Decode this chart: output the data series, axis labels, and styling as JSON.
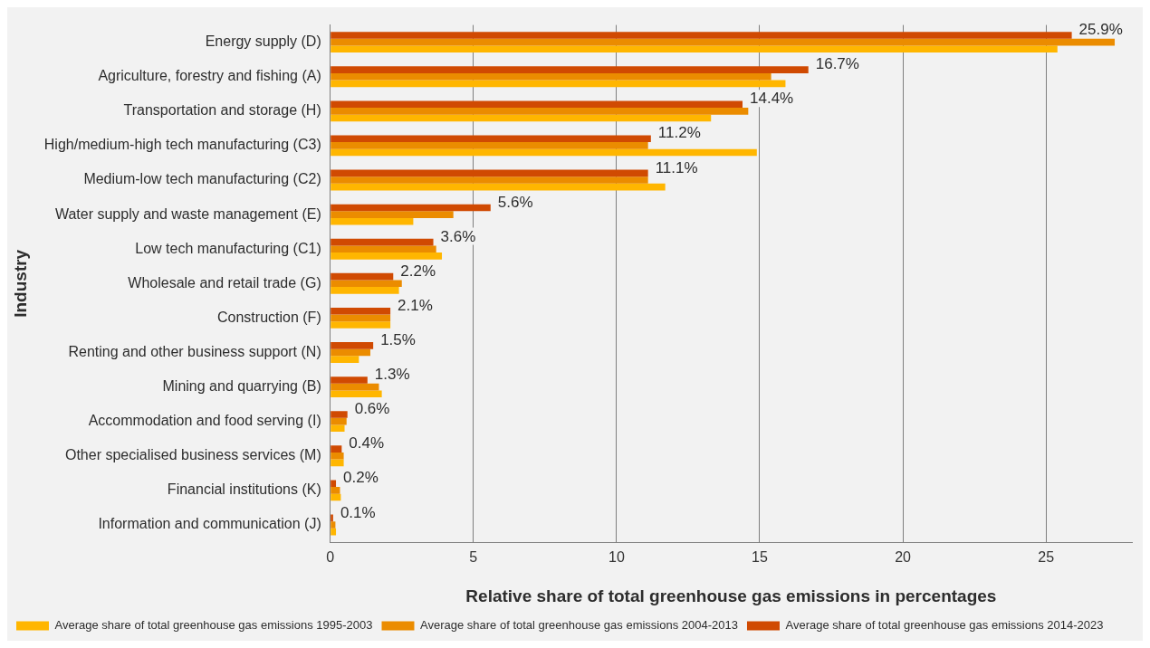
{
  "chart_data": {
    "type": "bar",
    "orientation": "horizontal",
    "xlabel": "Relative share of total greenhouse gas emissions in percentages",
    "ylabel": "Industry",
    "categories": [
      "Energy supply (D)",
      "Agriculture, forestry and fishing (A)",
      "Transportation and storage (H)",
      "High/medium-high tech manufacturing (C3)",
      "Medium-low tech manufacturing (C2)",
      "Water supply and waste management (E)",
      "Low tech manufacturing (C1)",
      "Wholesale and retail trade (G)",
      "Construction (F)",
      "Renting and other business support (N)",
      "Mining and quarrying (B)",
      "Accommodation and food serving (I)",
      "Other specialised business services (M)",
      "Financial institutions (K)",
      "Information and communication (J)"
    ],
    "series": [
      {
        "name": "Average share of total greenhouse gas emissions 1995-2003",
        "color": "#ffb600",
        "values": [
          25.4,
          15.9,
          13.3,
          14.9,
          11.7,
          2.9,
          3.9,
          2.4,
          2.1,
          1.0,
          1.8,
          0.5,
          0.47,
          0.37,
          0.2
        ]
      },
      {
        "name": "Average share of total greenhouse gas emissions 2004-2013",
        "color": "#eb8c00",
        "values": [
          27.4,
          15.4,
          14.6,
          11.1,
          11.1,
          4.3,
          3.7,
          2.5,
          2.1,
          1.4,
          1.7,
          0.57,
          0.47,
          0.34,
          0.18
        ]
      },
      {
        "name": "Average share of total greenhouse gas emissions 2014-2023",
        "color": "#d04a02",
        "values": [
          25.9,
          16.7,
          14.4,
          11.2,
          11.1,
          5.6,
          3.6,
          2.2,
          2.1,
          1.5,
          1.3,
          0.6,
          0.4,
          0.2,
          0.1
        ],
        "value_labels": [
          "25.9%",
          "16.7%",
          "14.4%",
          "11.2%",
          "11.1%",
          "5.6%",
          "3.6%",
          "2.2%",
          "2.1%",
          "1.5%",
          "1.3%",
          "0.6%",
          "0.4%",
          "0.2%",
          "0.1%"
        ]
      }
    ],
    "xlim": [
      0,
      28
    ],
    "xticks": [
      0,
      5,
      10,
      15,
      20,
      25
    ],
    "grid": "x",
    "legend": "bottom"
  }
}
